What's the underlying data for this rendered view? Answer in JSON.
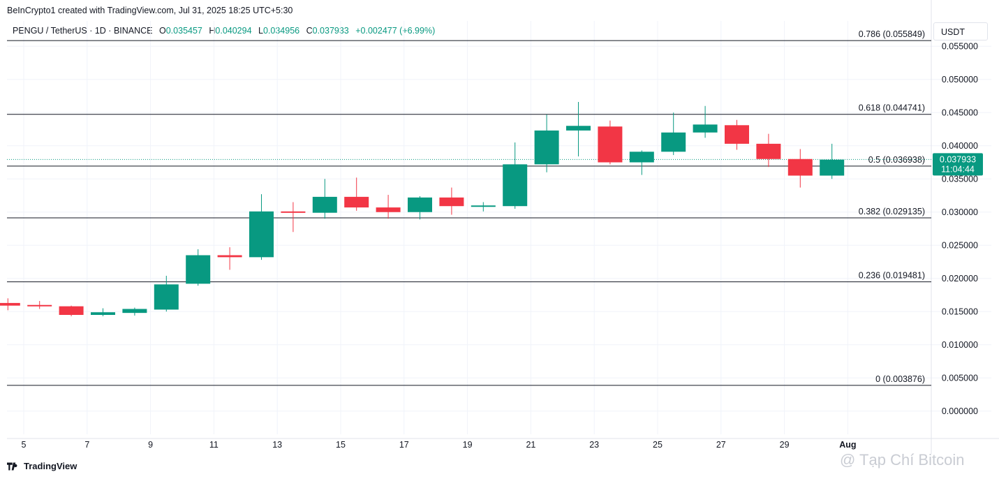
{
  "header": {
    "caption": "BeInCrypto1 created with TradingView.com, Jul 31, 2025 18:25 UTC+5:30",
    "symbol": "PENGU / TetherUS · 1D · BINANCE",
    "open_label": "O",
    "open": "0.035457",
    "high_label": "H",
    "high": "0.040294",
    "low_label": "L",
    "low": "0.034956",
    "close_label": "C",
    "close": "0.037933",
    "change": "+0.002477 (+6.99%)",
    "currency": "USDT"
  },
  "footer": {
    "brand": "TradingView",
    "watermark": "@ Tạp Chí Bitcoin"
  },
  "colors": {
    "up": "#089981",
    "down": "#f23645",
    "grid": "#f0f3fa",
    "fib_line": "#131722",
    "price_tag": "#089981"
  },
  "chart_data": {
    "type": "candlestick",
    "x_ticks": [
      "5",
      "7",
      "9",
      "11",
      "13",
      "15",
      "17",
      "19",
      "21",
      "23",
      "25",
      "27",
      "29",
      "Aug"
    ],
    "y_ticks": [
      "0.000000",
      "0.005000",
      "0.010000",
      "0.015000",
      "0.020000",
      "0.025000",
      "0.030000",
      "0.035000",
      "0.040000",
      "0.045000",
      "0.050000",
      "0.055000"
    ],
    "ylim": [
      -0.0035,
      0.0565
    ],
    "grid": true,
    "last_price": "0.037933",
    "countdown": "11:04:44",
    "fib_levels": [
      {
        "label": "0.786 (0.055849)",
        "value": 0.055849
      },
      {
        "label": "0.618 (0.044741)",
        "value": 0.044741
      },
      {
        "label": "0.5 (0.036938)",
        "value": 0.036938
      },
      {
        "label": "0.382 (0.029135)",
        "value": 0.029135
      },
      {
        "label": "0.236 (0.019481)",
        "value": 0.019481
      },
      {
        "label": "0 (0.003876)",
        "value": 0.003876
      }
    ],
    "candles": [
      {
        "date": "Jul 4",
        "o": 0.0163,
        "h": 0.017,
        "l": 0.0152,
        "c": 0.0159
      },
      {
        "date": "Jul 5",
        "o": 0.016,
        "h": 0.0166,
        "l": 0.0154,
        "c": 0.0158
      },
      {
        "date": "Jul 6",
        "o": 0.0158,
        "h": 0.0159,
        "l": 0.0143,
        "c": 0.0145
      },
      {
        "date": "Jul 7",
        "o": 0.0145,
        "h": 0.0155,
        "l": 0.0143,
        "c": 0.0149
      },
      {
        "date": "Jul 8",
        "o": 0.0148,
        "h": 0.0156,
        "l": 0.0144,
        "c": 0.0154
      },
      {
        "date": "Jul 9",
        "o": 0.0153,
        "h": 0.0204,
        "l": 0.015,
        "c": 0.0191
      },
      {
        "date": "Jul 10",
        "o": 0.0192,
        "h": 0.0244,
        "l": 0.0189,
        "c": 0.0235
      },
      {
        "date": "Jul 11",
        "o": 0.0235,
        "h": 0.0247,
        "l": 0.0213,
        "c": 0.0232
      },
      {
        "date": "Jul 12",
        "o": 0.0232,
        "h": 0.0327,
        "l": 0.0228,
        "c": 0.0301
      },
      {
        "date": "Jul 13",
        "o": 0.0301,
        "h": 0.0315,
        "l": 0.027,
        "c": 0.03
      },
      {
        "date": "Jul 14",
        "o": 0.0299,
        "h": 0.035,
        "l": 0.029,
        "c": 0.0323
      },
      {
        "date": "Jul 15",
        "o": 0.0323,
        "h": 0.0352,
        "l": 0.0302,
        "c": 0.0307
      },
      {
        "date": "Jul 16",
        "o": 0.0307,
        "h": 0.0326,
        "l": 0.029,
        "c": 0.03
      },
      {
        "date": "Jul 17",
        "o": 0.03,
        "h": 0.0324,
        "l": 0.0289,
        "c": 0.0322
      },
      {
        "date": "Jul 18",
        "o": 0.0322,
        "h": 0.0337,
        "l": 0.0296,
        "c": 0.0309
      },
      {
        "date": "Jul 19",
        "o": 0.0309,
        "h": 0.0315,
        "l": 0.0301,
        "c": 0.031
      },
      {
        "date": "Jul 20",
        "o": 0.0309,
        "h": 0.0405,
        "l": 0.0305,
        "c": 0.0372
      },
      {
        "date": "Jul 21",
        "o": 0.0372,
        "h": 0.0447,
        "l": 0.036,
        "c": 0.0423
      },
      {
        "date": "Jul 22",
        "o": 0.0423,
        "h": 0.0466,
        "l": 0.0384,
        "c": 0.043
      },
      {
        "date": "Jul 23",
        "o": 0.0429,
        "h": 0.0438,
        "l": 0.0372,
        "c": 0.0375
      },
      {
        "date": "Jul 24",
        "o": 0.0375,
        "h": 0.0393,
        "l": 0.0356,
        "c": 0.0391
      },
      {
        "date": "Jul 25",
        "o": 0.0391,
        "h": 0.045,
        "l": 0.0386,
        "c": 0.042
      },
      {
        "date": "Jul 26",
        "o": 0.042,
        "h": 0.046,
        "l": 0.0412,
        "c": 0.0432
      },
      {
        "date": "Jul 27",
        "o": 0.0431,
        "h": 0.0439,
        "l": 0.0394,
        "c": 0.0403
      },
      {
        "date": "Jul 28",
        "o": 0.0403,
        "h": 0.0418,
        "l": 0.0368,
        "c": 0.038
      },
      {
        "date": "Jul 29",
        "o": 0.038,
        "h": 0.0395,
        "l": 0.0337,
        "c": 0.0355
      },
      {
        "date": "Jul 30",
        "o": 0.0355,
        "h": 0.0403,
        "l": 0.035,
        "c": 0.0379
      }
    ]
  }
}
